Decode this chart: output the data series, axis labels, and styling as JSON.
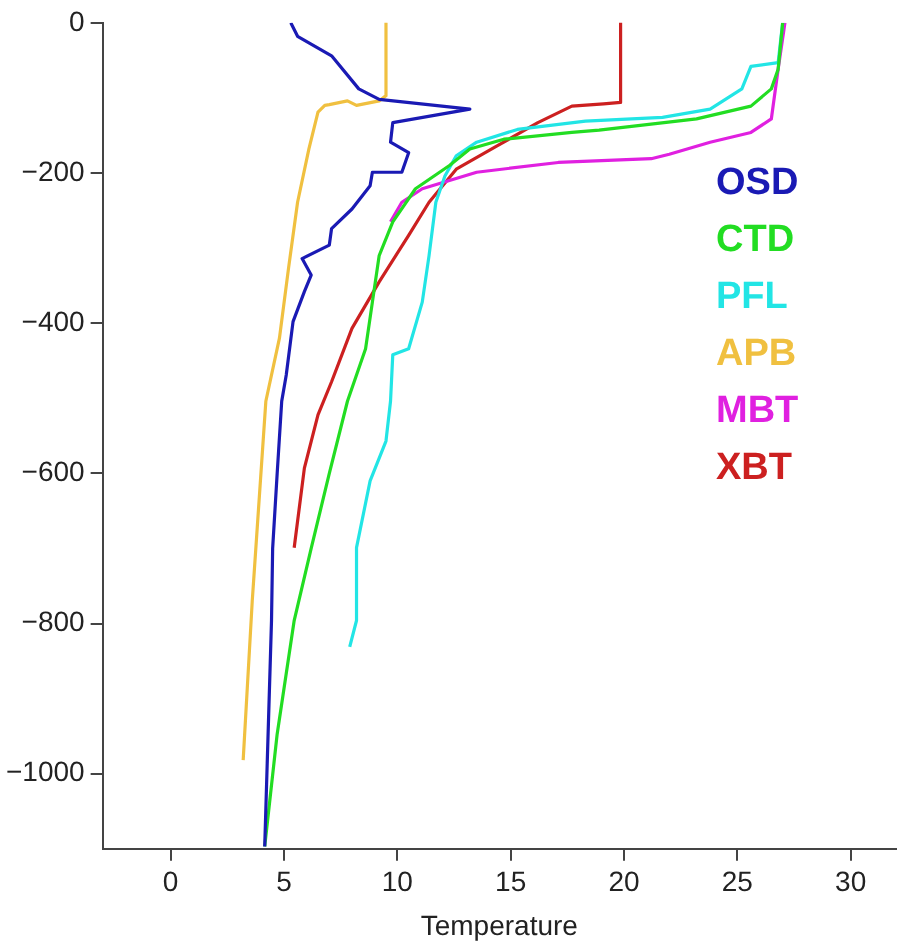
{
  "chart_data": {
    "type": "line",
    "xlabel": "Temperature",
    "xlim": [
      -3,
      32
    ],
    "xticks": [
      0,
      5,
      10,
      15,
      20,
      25,
      30
    ],
    "ylim": [
      -1100,
      0
    ],
    "yticks": [
      -1000,
      -800,
      -600,
      -400,
      -200,
      0
    ],
    "grid": false,
    "legend": "right",
    "series": [
      {
        "name": "OSD",
        "color": "#1a1ab4",
        "x": [
          5.3,
          5.6,
          7.1,
          8.3,
          9.2,
          13.2,
          9.8,
          9.7,
          10.5,
          10.2,
          8.9,
          8.8,
          8.0,
          7.1,
          7.0,
          5.8,
          6.2,
          5.9,
          5.4,
          5.1,
          4.9,
          4.7,
          4.5,
          4.45,
          4.15
        ],
        "values": [
          0,
          -18,
          -44,
          -88,
          -102,
          -115,
          -133,
          -159,
          -173,
          -199,
          -199,
          -217,
          -248,
          -274,
          -296,
          -314,
          -336,
          -358,
          -398,
          -469,
          -504,
          -600,
          -700,
          -796,
          -1097
        ]
      },
      {
        "name": "CTD",
        "color": "#22dd22",
        "x": [
          27.0,
          26.8,
          26.5,
          25.6,
          23.2,
          18.9,
          17.7,
          14.7,
          13.2,
          12.3,
          10.8,
          9.8,
          9.2,
          8.9,
          8.6,
          7.8,
          7.0,
          6.2,
          5.45,
          4.7,
          4.15
        ],
        "values": [
          0,
          -62,
          -88,
          -111,
          -128,
          -143,
          -146,
          -155,
          -168,
          -190,
          -221,
          -265,
          -310,
          -372,
          -434,
          -504,
          -600,
          -700,
          -796,
          -947,
          -1097
        ]
      },
      {
        "name": "PFL",
        "color": "#22e5e5",
        "x": [
          27.0,
          26.8,
          25.6,
          25.2,
          23.8,
          21.7,
          18.3,
          15.3,
          13.5,
          12.6,
          12.1,
          11.7,
          11.4,
          11.1,
          10.5,
          9.8,
          9.7,
          9.5,
          8.8,
          8.2,
          8.2,
          7.9
        ],
        "values": [
          0,
          -53,
          -58,
          -88,
          -115,
          -126,
          -131,
          -142,
          -159,
          -177,
          -204,
          -239,
          -310,
          -372,
          -434,
          -442,
          -504,
          -557,
          -610,
          -699,
          -796,
          -831
        ]
      },
      {
        "name": "APB",
        "color": "#f0c040",
        "x": [
          9.5,
          9.5,
          9.2,
          8.2,
          7.8,
          7.0,
          6.8,
          6.5,
          6.1,
          5.6,
          5.2,
          4.8,
          4.2,
          3.9,
          3.6,
          3.2
        ],
        "values": [
          0,
          -97,
          -104,
          -110,
          -104,
          -109,
          -110,
          -119,
          -168,
          -239,
          -327,
          -420,
          -504,
          -637,
          -770,
          -982
        ]
      },
      {
        "name": "MBT",
        "color": "#e020e0",
        "x": [
          27.1,
          26.8,
          26.5,
          25.6,
          23.8,
          22.0,
          21.2,
          17.1,
          13.5,
          11.1,
          10.2,
          9.7
        ],
        "values": [
          0,
          -62,
          -128,
          -146,
          -159,
          -175,
          -181,
          -186,
          -199,
          -221,
          -239,
          -265
        ]
      },
      {
        "name": "XBT",
        "color": "#cc2020",
        "x": [
          19.85,
          19.85,
          19.1,
          17.7,
          16.2,
          14.4,
          12.6,
          11.4,
          10.5,
          9.2,
          8.0,
          7.1,
          6.5,
          5.9,
          5.45
        ],
        "values": [
          0,
          -106,
          -108,
          -111,
          -133,
          -164,
          -195,
          -239,
          -283,
          -345,
          -407,
          -478,
          -522,
          -593,
          -699
        ]
      }
    ]
  }
}
